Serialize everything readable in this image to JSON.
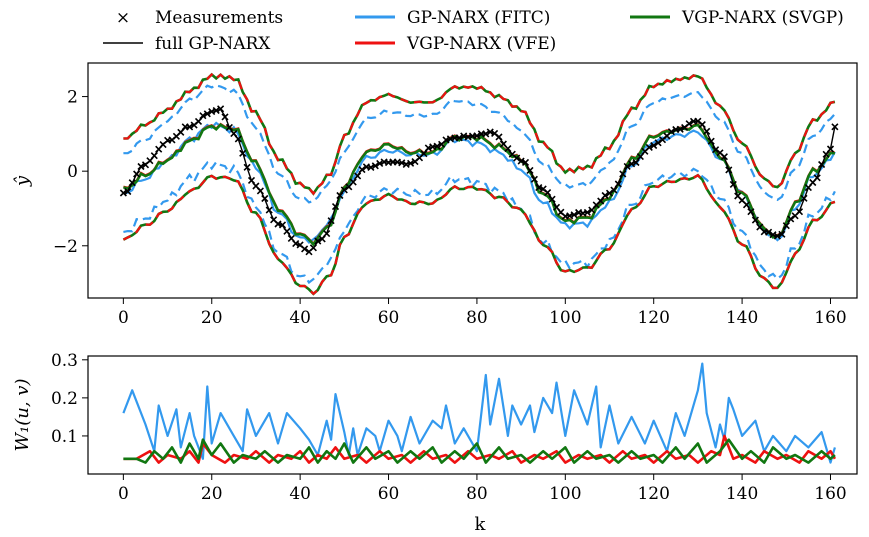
{
  "chart_data": [
    {
      "type": "line",
      "ylabel": "ŷ",
      "xlim": [
        -8,
        166
      ],
      "ylim": [
        -3.4,
        2.9
      ],
      "xticks": [
        "0",
        "20",
        "40",
        "60",
        "80",
        "100",
        "120",
        "140",
        "160"
      ],
      "yticks": [
        "−2",
        "0",
        "2"
      ],
      "legend_position": "top (above axes)",
      "legend": [
        {
          "label": "Measurements",
          "marker": "x",
          "color": "#000000"
        },
        {
          "label": "full GP-NARX",
          "color": "#000000"
        },
        {
          "label": "GP-NARX (FITC)",
          "color": "#3399ee"
        },
        {
          "label": "VGP-NARX (VFE)",
          "color": "#ee1111"
        },
        {
          "label": "VGP-NARX (SVGP)",
          "color": "#117711"
        }
      ],
      "control_points": {
        "measurements_k": [
          0,
          5,
          10,
          15,
          20,
          22,
          25,
          30,
          35,
          40,
          42,
          45,
          50,
          55,
          60,
          65,
          70,
          75,
          80,
          83,
          90,
          95,
          100,
          105,
          110,
          115,
          120,
          125,
          130,
          135,
          140,
          145,
          148,
          152,
          156,
          160,
          162
        ],
        "measurements_y": [
          -0.6,
          0.2,
          0.8,
          1.2,
          1.6,
          1.65,
          1.0,
          -0.4,
          -1.4,
          -2.0,
          -2.15,
          -1.8,
          -0.5,
          0.1,
          0.25,
          0.2,
          0.65,
          0.9,
          0.95,
          1.05,
          0.3,
          -0.5,
          -1.2,
          -1.1,
          -0.6,
          0.2,
          0.7,
          1.1,
          1.35,
          0.5,
          -0.8,
          -1.6,
          -1.75,
          -1.2,
          -0.3,
          0.6,
          1.8
        ],
        "svgp_mean_k": [
          0,
          5,
          10,
          15,
          20,
          25,
          30,
          35,
          40,
          43,
          47,
          50,
          55,
          60,
          65,
          70,
          75,
          80,
          85,
          90,
          95,
          100,
          105,
          110,
          115,
          120,
          125,
          130,
          135,
          140,
          145,
          148,
          152,
          156,
          162
        ],
        "svgp_mean_y": [
          -0.5,
          -0.1,
          0.3,
          0.8,
          1.2,
          1.15,
          0.2,
          -1.0,
          -1.7,
          -1.9,
          -1.4,
          -0.4,
          0.5,
          0.7,
          0.5,
          0.5,
          0.9,
          0.9,
          0.65,
          0.3,
          -0.6,
          -1.35,
          -1.25,
          -0.7,
          0.3,
          0.95,
          1.1,
          1.2,
          0.4,
          -0.6,
          -1.55,
          -1.8,
          -0.9,
          0.0,
          0.6
        ],
        "band_offset": 1.35,
        "fitc_mean_k": [
          0,
          5,
          10,
          15,
          20,
          25,
          30,
          35,
          40,
          43,
          47,
          50,
          55,
          60,
          65,
          70,
          75,
          80,
          85,
          90,
          95,
          100,
          105,
          110,
          115,
          120,
          125,
          130,
          135,
          140,
          145,
          148,
          152,
          156,
          162
        ],
        "fitc_mean_y": [
          -0.6,
          -0.2,
          0.3,
          0.85,
          1.25,
          1.1,
          0.1,
          -1.1,
          -1.8,
          -1.85,
          -1.3,
          -0.5,
          0.35,
          0.55,
          0.45,
          0.45,
          0.85,
          0.75,
          0.5,
          0.05,
          -0.85,
          -1.45,
          -1.4,
          -0.85,
          0.15,
          0.8,
          0.95,
          1.05,
          0.35,
          -0.6,
          -1.6,
          -1.85,
          -1.0,
          -0.1,
          0.55
        ],
        "fitc_band_offset": 1.05
      },
      "series": [
        {
          "name": "Measurements",
          "style": "x"
        },
        {
          "name": "full GP-NARX",
          "style": "solid",
          "width": 1.5
        },
        {
          "name": "GP-NARX (FITC)",
          "style": "solid mean, dashed ±band"
        },
        {
          "name": "VGP-NARX (VFE)",
          "style": "solid mean, dashed ±band"
        },
        {
          "name": "VGP-NARX (SVGP)",
          "style": "solid mean and band"
        }
      ]
    },
    {
      "type": "line",
      "xlabel": "k",
      "ylabel": "W₁(u, v)",
      "xlim": [
        -8,
        166
      ],
      "ylim": [
        0.0,
        0.31
      ],
      "xticks": [
        "0",
        "20",
        "40",
        "60",
        "80",
        "100",
        "120",
        "140",
        "160"
      ],
      "yticks": [
        "0.1",
        "0.2",
        "0.3"
      ],
      "series": [
        {
          "name": "GP-NARX (FITC)",
          "color": "#3399ee",
          "x": [
            0,
            2,
            5,
            7,
            8,
            10,
            12,
            13,
            15,
            16,
            17,
            18,
            19,
            20,
            22,
            25,
            27,
            28,
            30,
            33,
            35,
            37,
            40,
            42,
            44,
            46,
            47,
            48,
            50,
            51,
            52,
            53,
            55,
            57,
            58,
            60,
            62,
            63,
            65,
            67,
            70,
            72,
            73,
            75,
            77,
            80,
            82,
            83,
            85,
            87,
            88,
            90,
            92,
            93,
            95,
            97,
            98,
            100,
            102,
            105,
            107,
            108,
            110,
            112,
            115,
            118,
            120,
            123,
            125,
            127,
            130,
            131,
            132,
            134,
            135,
            136,
            137,
            138,
            140,
            143,
            145,
            147,
            150,
            152,
            155,
            158,
            160,
            161
          ],
          "y": [
            0.16,
            0.22,
            0.13,
            0.06,
            0.18,
            0.1,
            0.17,
            0.07,
            0.16,
            0.1,
            0.07,
            0.04,
            0.23,
            0.08,
            0.16,
            0.1,
            0.06,
            0.17,
            0.1,
            0.16,
            0.08,
            0.16,
            0.12,
            0.09,
            0.05,
            0.14,
            0.09,
            0.21,
            0.11,
            0.05,
            0.12,
            0.05,
            0.12,
            0.1,
            0.06,
            0.14,
            0.1,
            0.06,
            0.15,
            0.08,
            0.14,
            0.12,
            0.18,
            0.08,
            0.12,
            0.06,
            0.26,
            0.13,
            0.25,
            0.1,
            0.18,
            0.13,
            0.18,
            0.11,
            0.2,
            0.16,
            0.24,
            0.1,
            0.22,
            0.13,
            0.23,
            0.07,
            0.18,
            0.08,
            0.15,
            0.08,
            0.14,
            0.06,
            0.16,
            0.1,
            0.22,
            0.29,
            0.16,
            0.07,
            0.13,
            0.09,
            0.2,
            0.17,
            0.1,
            0.14,
            0.06,
            0.1,
            0.06,
            0.1,
            0.07,
            0.11,
            0.03,
            0.07
          ]
        },
        {
          "name": "VGP-NARX (VFE)",
          "color": "#ee1111",
          "x": [
            0,
            3,
            6,
            8,
            10,
            13,
            15,
            17,
            18,
            20,
            23,
            25,
            28,
            30,
            33,
            35,
            38,
            40,
            42,
            44,
            46,
            48,
            50,
            53,
            55,
            58,
            60,
            63,
            65,
            68,
            70,
            73,
            75,
            78,
            80,
            83,
            85,
            88,
            90,
            93,
            95,
            98,
            100,
            103,
            105,
            108,
            110,
            113,
            115,
            118,
            120,
            123,
            125,
            128,
            130,
            133,
            135,
            136,
            138,
            140,
            143,
            145,
            148,
            150,
            153,
            155,
            158,
            160,
            161
          ],
          "y": [
            0.04,
            0.04,
            0.06,
            0.03,
            0.05,
            0.04,
            0.06,
            0.03,
            0.08,
            0.05,
            0.03,
            0.05,
            0.04,
            0.06,
            0.03,
            0.05,
            0.04,
            0.06,
            0.03,
            0.05,
            0.04,
            0.07,
            0.04,
            0.05,
            0.03,
            0.06,
            0.04,
            0.05,
            0.03,
            0.06,
            0.04,
            0.05,
            0.03,
            0.06,
            0.04,
            0.05,
            0.04,
            0.06,
            0.03,
            0.05,
            0.04,
            0.06,
            0.03,
            0.05,
            0.04,
            0.05,
            0.03,
            0.06,
            0.04,
            0.05,
            0.03,
            0.06,
            0.04,
            0.05,
            0.03,
            0.06,
            0.05,
            0.1,
            0.04,
            0.05,
            0.03,
            0.06,
            0.04,
            0.05,
            0.03,
            0.06,
            0.04,
            0.06,
            0.04
          ]
        },
        {
          "name": "VGP-NARX (SVGP)",
          "color": "#117711",
          "x": [
            0,
            3,
            5,
            7,
            9,
            11,
            13,
            15,
            17,
            18,
            20,
            22,
            25,
            27,
            30,
            32,
            35,
            37,
            40,
            42,
            44,
            46,
            48,
            50,
            52,
            55,
            57,
            60,
            62,
            65,
            67,
            70,
            72,
            75,
            77,
            80,
            82,
            85,
            87,
            90,
            92,
            95,
            97,
            100,
            102,
            105,
            107,
            110,
            112,
            115,
            117,
            120,
            122,
            125,
            127,
            130,
            132,
            135,
            137,
            140,
            142,
            145,
            147,
            150,
            152,
            155,
            158,
            160,
            161
          ],
          "y": [
            0.04,
            0.04,
            0.03,
            0.06,
            0.04,
            0.07,
            0.03,
            0.08,
            0.04,
            0.09,
            0.05,
            0.08,
            0.03,
            0.05,
            0.04,
            0.06,
            0.03,
            0.05,
            0.04,
            0.07,
            0.03,
            0.06,
            0.04,
            0.08,
            0.03,
            0.07,
            0.04,
            0.06,
            0.03,
            0.06,
            0.04,
            0.07,
            0.03,
            0.06,
            0.04,
            0.08,
            0.03,
            0.07,
            0.04,
            0.05,
            0.03,
            0.06,
            0.04,
            0.07,
            0.03,
            0.06,
            0.04,
            0.05,
            0.03,
            0.06,
            0.04,
            0.05,
            0.03,
            0.07,
            0.04,
            0.08,
            0.03,
            0.06,
            0.09,
            0.04,
            0.06,
            0.03,
            0.07,
            0.04,
            0.05,
            0.03,
            0.06,
            0.04,
            0.05
          ]
        }
      ]
    }
  ]
}
